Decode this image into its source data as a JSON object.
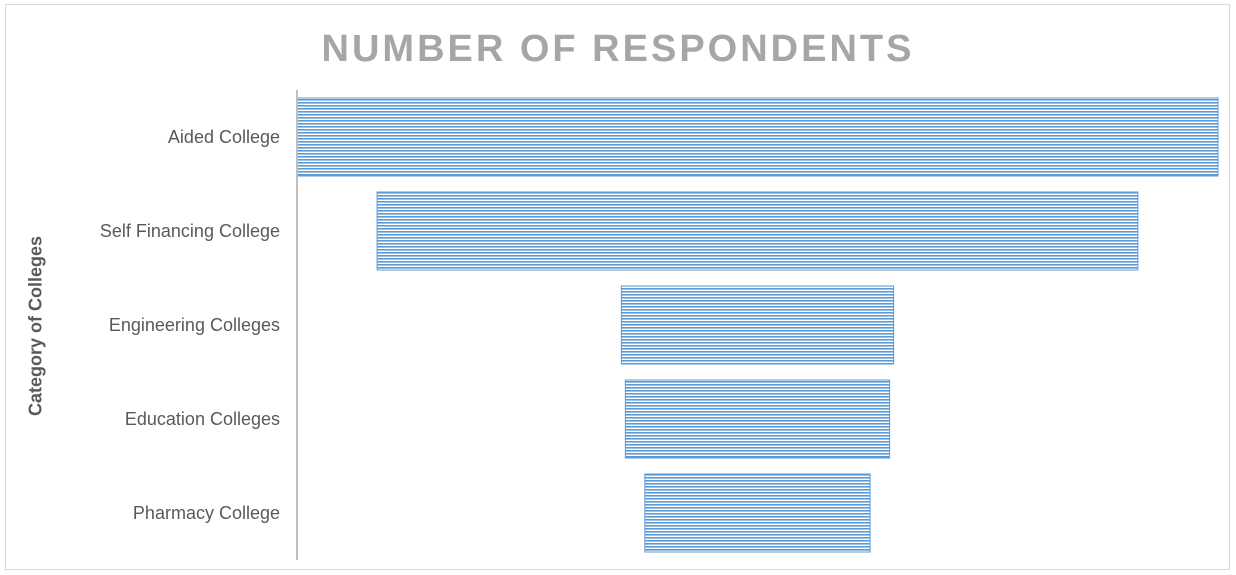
{
  "chart_data": {
    "type": "bar",
    "subtype": "funnel",
    "title": "NUMBER OF RESPONDENTS",
    "xlabel": "",
    "ylabel": "Category of Colleges",
    "categories": [
      "Aided College",
      "Self Financing College",
      "Engineering Colleges",
      "Education Colleges",
      "Pharmacy College"
    ],
    "values": [
      920,
      760,
      272,
      264,
      225
    ],
    "xlim": [
      0,
      920
    ],
    "grid": false,
    "legend": "none",
    "bar_color": "#5b9bd5",
    "bar_fill": "horizontal-stripes"
  }
}
